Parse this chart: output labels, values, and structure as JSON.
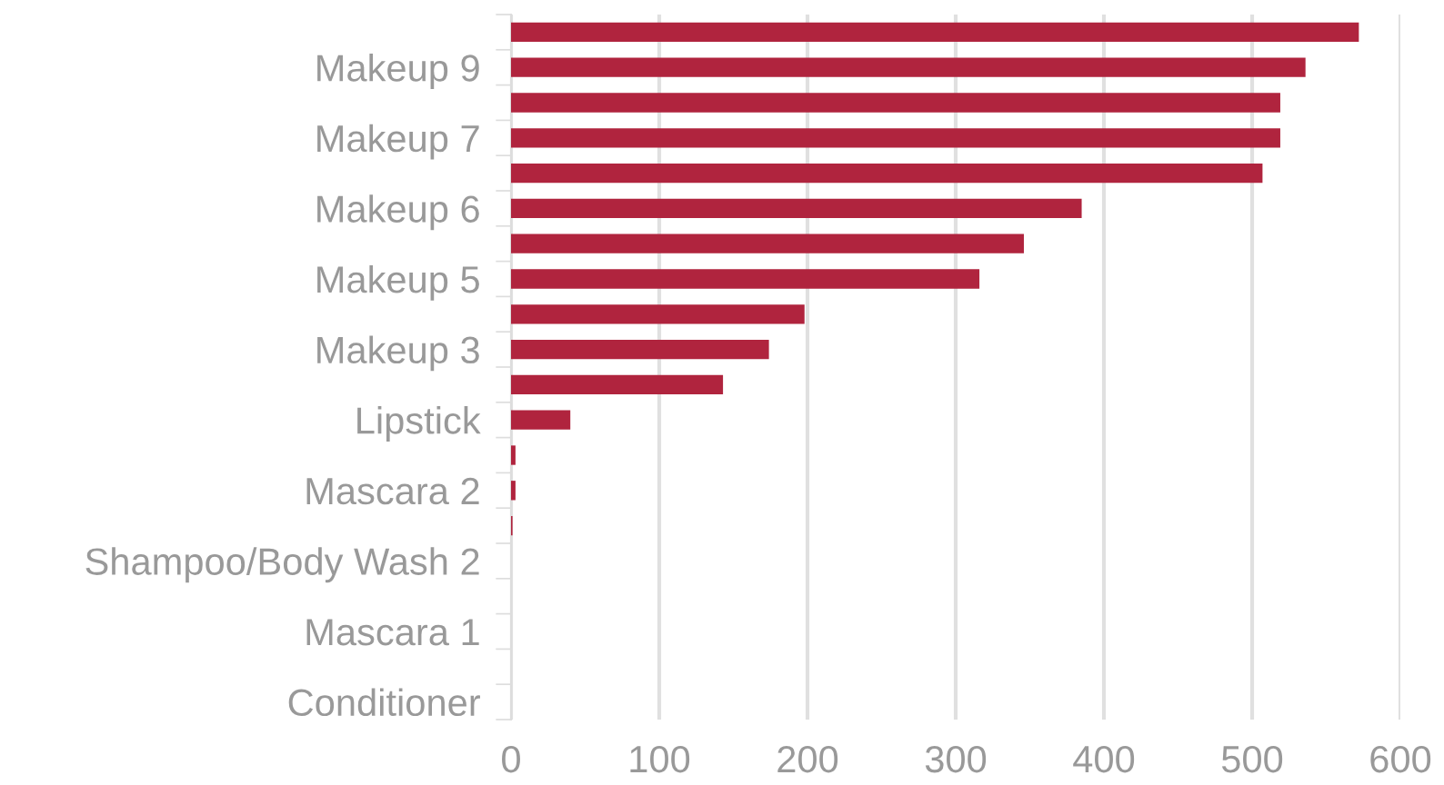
{
  "chart_data": {
    "type": "bar",
    "orientation": "horizontal",
    "categories": [
      null,
      "Makeup 9",
      null,
      "Makeup 7",
      null,
      "Makeup 6",
      null,
      "Makeup 5",
      null,
      "Makeup 3",
      null,
      "Lipstick",
      null,
      "Mascara 2",
      null,
      "Shampoo/Body Wash 2",
      null,
      "Mascara 1",
      null,
      "Conditioner"
    ],
    "values": [
      572,
      536,
      519,
      519,
      507,
      385,
      346,
      316,
      198,
      174,
      143,
      40,
      3,
      3,
      1,
      0,
      0,
      0,
      0,
      0
    ],
    "color": "#b0243e",
    "xlim": [
      0,
      600
    ],
    "xticks": [
      0,
      100,
      200,
      300,
      400,
      500,
      600
    ],
    "grid": "x"
  }
}
